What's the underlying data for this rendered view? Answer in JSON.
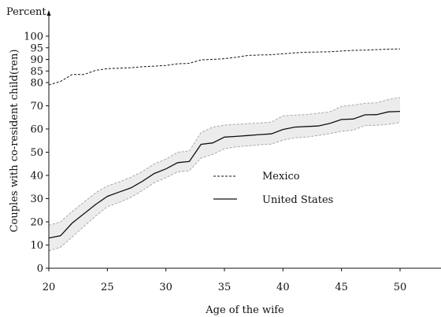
{
  "chart_data": {
    "type": "line",
    "title": "",
    "y_unit_label": "Percent",
    "xlabel": "Age of the wife",
    "ylabel": "Couples with co-resident child(ren)",
    "xlim": [
      20,
      53
    ],
    "ylim": [
      0,
      102
    ],
    "x_ticks": [
      20,
      25,
      30,
      35,
      40,
      45,
      50
    ],
    "y_ticks": [
      0,
      10,
      20,
      30,
      40,
      50,
      60,
      70,
      80,
      85,
      90,
      95,
      100
    ],
    "y_tick_labels": [
      "0",
      "10",
      "20",
      "30",
      "40",
      "50",
      "60",
      "70",
      "80",
      "85",
      "90",
      "95",
      "100"
    ],
    "grid": false,
    "legend_position": "center",
    "series": [
      {
        "name": "Mexico",
        "style": "dashed",
        "x": [
          20,
          21,
          22,
          23,
          24,
          25,
          26,
          27,
          28,
          29,
          30,
          31,
          32,
          33,
          34,
          35,
          36,
          37,
          38,
          39,
          40,
          41,
          42,
          43,
          44,
          45,
          46,
          47,
          48,
          49,
          50
        ],
        "y": [
          79,
          80.5,
          83.5,
          83.5,
          85.3,
          86,
          86.2,
          86.4,
          86.8,
          87.1,
          87.4,
          88.1,
          88.3,
          89.8,
          90.0,
          90.3,
          90.9,
          91.7,
          91.9,
          92.0,
          92.4,
          92.8,
          93.1,
          93.2,
          93.3,
          93.6,
          93.9,
          94.0,
          94.2,
          94.4,
          94.5
        ]
      },
      {
        "name": "United States",
        "style": "solid",
        "x": [
          20,
          21,
          22,
          23,
          24,
          25,
          26,
          27,
          28,
          29,
          30,
          31,
          32,
          33,
          34,
          35,
          36,
          37,
          38,
          39,
          40,
          41,
          42,
          43,
          44,
          45,
          46,
          47,
          48,
          49,
          50
        ],
        "y": [
          13,
          14,
          19.5,
          23.5,
          27.5,
          31,
          32.8,
          34.6,
          37.5,
          40.8,
          42.8,
          45.5,
          46,
          53.4,
          54.0,
          56.5,
          56.8,
          57.2,
          57.6,
          57.9,
          59.8,
          60.8,
          61.1,
          61.3,
          62.4,
          64.1,
          64.3,
          66.1,
          66.2,
          67.4,
          67.6
        ],
        "ci_low": [
          7.5,
          9,
          13.5,
          18,
          22.5,
          26.5,
          28.3,
          30.5,
          33.5,
          36.8,
          39,
          41.5,
          42,
          47.5,
          49,
          51.5,
          52.3,
          52.7,
          53.2,
          53.5,
          55.2,
          56.2,
          56.5,
          57.2,
          58,
          59,
          59.5,
          61.5,
          61.6,
          62,
          62.8
        ],
        "ci_high": [
          18.5,
          20,
          24.5,
          28.5,
          32.5,
          35.5,
          37.2,
          39.2,
          41.7,
          45,
          47,
          50,
          50.5,
          58.5,
          60.8,
          61.7,
          62,
          62.3,
          62.6,
          63,
          65.7,
          66,
          66.2,
          66.8,
          67.4,
          69.8,
          70.3,
          71.1,
          71.3,
          72.7,
          73.6
        ]
      }
    ]
  }
}
